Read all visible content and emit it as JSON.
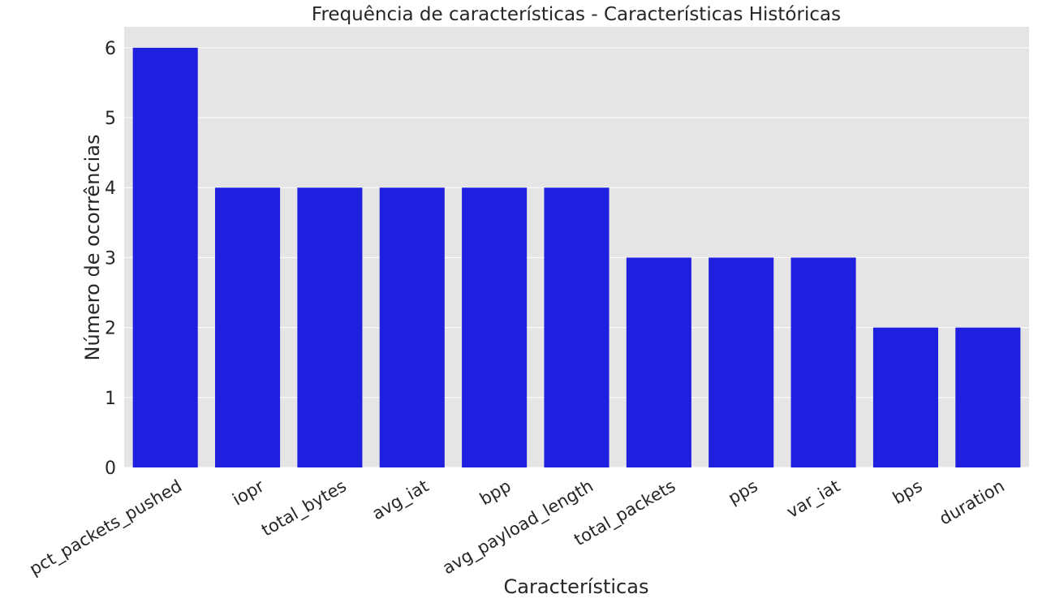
{
  "chart_data": {
    "type": "bar",
    "title": "Frequência de características - Características Históricas",
    "xlabel": "Características",
    "ylabel": "Número de ocorrências",
    "categories": [
      "pct_packets_pushed",
      "iopr",
      "total_bytes",
      "avg_iat",
      "bpp",
      "avg_payload_length",
      "total_packets",
      "pps",
      "var_iat",
      "bps",
      "duration"
    ],
    "values": [
      6,
      4,
      4,
      4,
      4,
      4,
      3,
      3,
      3,
      2,
      2
    ],
    "ylim": [
      0,
      6.3
    ],
    "yticks": [
      0,
      1,
      2,
      3,
      4,
      5,
      6
    ],
    "grid": true,
    "bar_color": "#1f1fe0",
    "plot_background": "#e5e5e5",
    "grid_color": "#ffffff"
  }
}
